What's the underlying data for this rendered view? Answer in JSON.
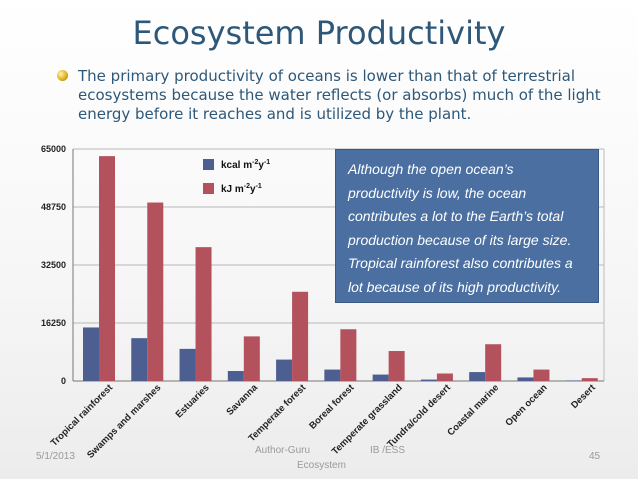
{
  "slide": {
    "title": "Ecosystem Productivity",
    "bullet": "The primary productivity of oceans is lower than that of terrestrial ecosystems because the water reflects (or absorbs) much of the light energy before it reaches and is utilized by the plant.",
    "annotation_lines": [
      "Although the open ocean’s",
      "productivity is low, the ocean",
      "contributes a lot to the Earth’s total",
      "production because of its large size.",
      "Tropical rainforest also contributes a",
      "lot because of its high productivity."
    ],
    "footer_date": "5/1/2013",
    "footer_author": "Author-Guru",
    "footer_course": "IB /ESS",
    "footer_sub": "Ecosystem",
    "page_number": "45"
  },
  "colors": {
    "kcal": "#4d5f91",
    "kj": "#b3515c",
    "title": "#2e5879",
    "annotation_bg": "#4a6fa0"
  },
  "chart_data": {
    "type": "bar",
    "title": "",
    "xlabel": "",
    "ylabel": "",
    "ylim": [
      0,
      65000
    ],
    "yticks": [
      "0",
      "16250",
      "32500",
      "48750",
      "65000"
    ],
    "grid": true,
    "legend_position": "top-left",
    "categories": [
      "Tropical rainforest",
      "Swamps and marshes",
      "Estuaries",
      "Savanna",
      "Temperate forest",
      "Boreal forest",
      "Temperate grassland",
      "Tundra/cold desert",
      "Coastal marine",
      "Open ocean",
      "Desert"
    ],
    "series": [
      {
        "name": "kcal m",
        "sup1": "-2",
        "mid": "y",
        "sup2": "-1",
        "color_key": "kcal",
        "values": [
          15000,
          12000,
          9000,
          2800,
          6000,
          3200,
          1800,
          400,
          2500,
          1000,
          150
        ]
      },
      {
        "name": "kJ m",
        "sup1": "-2",
        "mid": "y",
        "sup2": "-1",
        "color_key": "kj",
        "values": [
          63000,
          50000,
          37500,
          12500,
          25000,
          14500,
          8400,
          2100,
          10300,
          3200,
          800
        ]
      }
    ]
  }
}
